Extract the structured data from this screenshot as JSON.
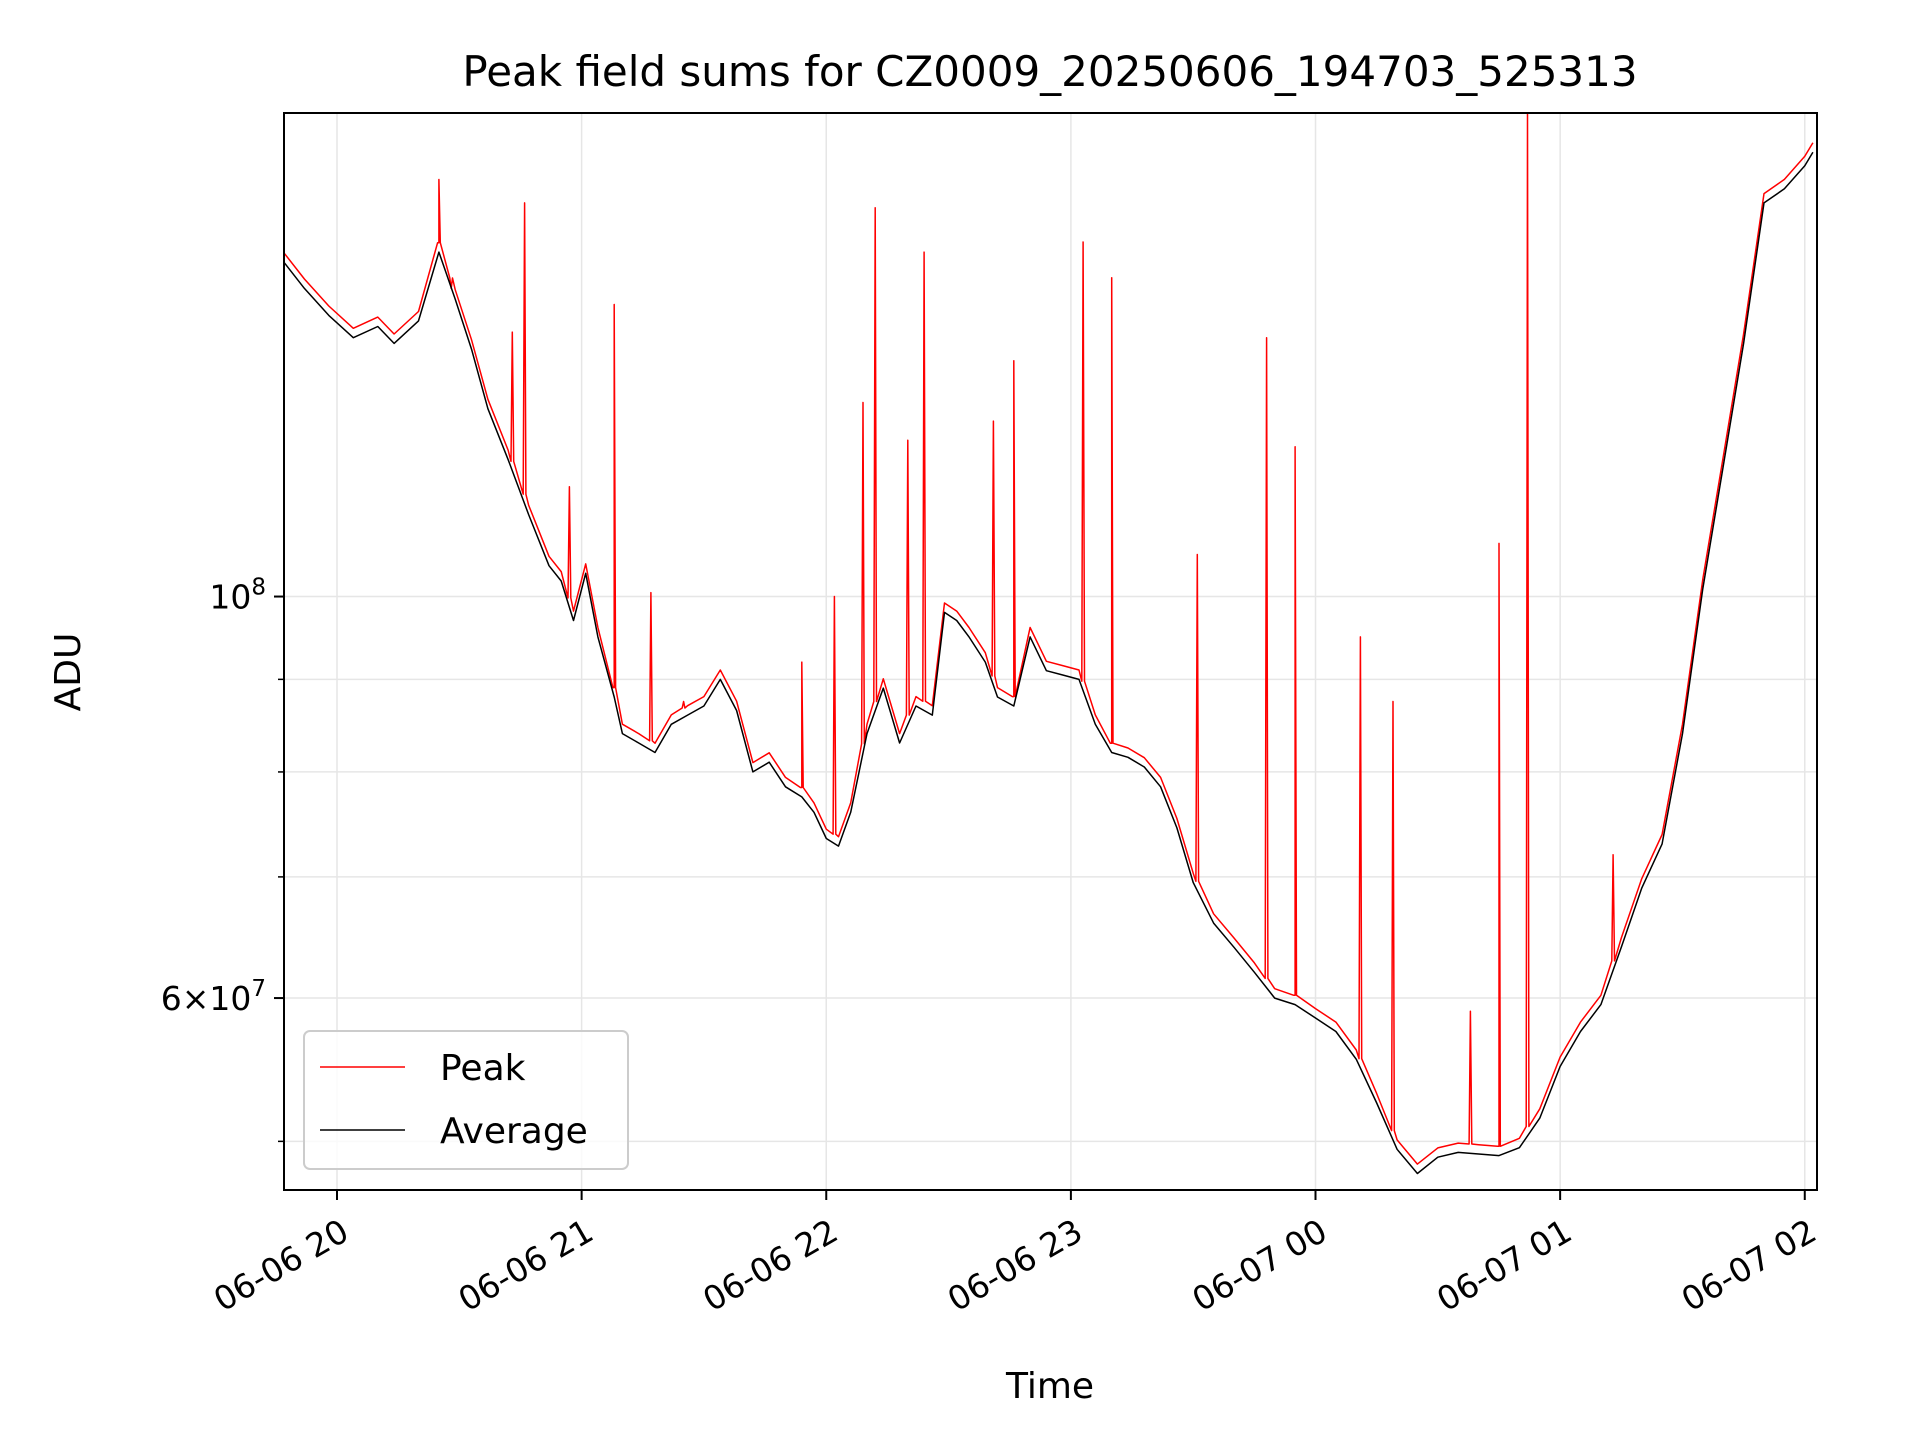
{
  "chart_data": {
    "type": "line",
    "title": "Peak field sums for CZ0009_20250606_194703_525313",
    "xlabel": "Time",
    "ylabel": "ADU",
    "y_scale": "log",
    "xlim": [
      "2025-06-06 19:47",
      "2025-06-07 02:03"
    ],
    "ylim": [
      47000000,
      185000000
    ],
    "x_ticks": [
      {
        "value": "2025-06-06 20:00",
        "label": "06-06 20"
      },
      {
        "value": "2025-06-06 21:00",
        "label": "06-06 21"
      },
      {
        "value": "2025-06-06 22:00",
        "label": "06-06 22"
      },
      {
        "value": "2025-06-06 23:00",
        "label": "06-06 23"
      },
      {
        "value": "2025-06-07 00:00",
        "label": "06-07 00"
      },
      {
        "value": "2025-06-07 01:00",
        "label": "06-07 01"
      },
      {
        "value": "2025-06-07 02:00",
        "label": "06-07 02"
      }
    ],
    "y_major_ticks": [
      {
        "value": 100000000,
        "base": "10",
        "exp": "8"
      },
      {
        "value": 60000000,
        "base": "6×10",
        "exp": "7"
      }
    ],
    "y_minor_ticks": [
      50000000,
      70000000,
      80000000,
      90000000
    ],
    "grid": true,
    "legend_position": "lower-left",
    "colors": {
      "peak": "#ff0000",
      "average": "#000000",
      "grid": "#e6e6e6",
      "legend_border": "#cccccc"
    },
    "series": [
      {
        "name": "Average",
        "color": "#000000",
        "points": [
          [
            "2025-06-06 19:47",
            153000000
          ],
          [
            "2025-06-06 19:52",
            148000000
          ],
          [
            "2025-06-06 19:58",
            143000000
          ],
          [
            "2025-06-06 20:04",
            139000000
          ],
          [
            "2025-06-06 20:10",
            141000000
          ],
          [
            "2025-06-06 20:14",
            138000000
          ],
          [
            "2025-06-06 20:20",
            142000000
          ],
          [
            "2025-06-06 20:25",
            155000000
          ],
          [
            "2025-06-06 20:29",
            146000000
          ],
          [
            "2025-06-06 20:33",
            137000000
          ],
          [
            "2025-06-06 20:37",
            127000000
          ],
          [
            "2025-06-06 20:42",
            119000000
          ],
          [
            "2025-06-06 20:47",
            111000000
          ],
          [
            "2025-06-06 20:52",
            104000000
          ],
          [
            "2025-06-06 20:55",
            102000000
          ],
          [
            "2025-06-06 20:58",
            97000000
          ],
          [
            "2025-06-06 21:01",
            103000000
          ],
          [
            "2025-06-06 21:04",
            95000000
          ],
          [
            "2025-06-06 21:08",
            88000000
          ],
          [
            "2025-06-06 21:10",
            84000000
          ],
          [
            "2025-06-06 21:14",
            83000000
          ],
          [
            "2025-06-06 21:18",
            82000000
          ],
          [
            "2025-06-06 21:22",
            85000000
          ],
          [
            "2025-06-06 21:26",
            86000000
          ],
          [
            "2025-06-06 21:30",
            87000000
          ],
          [
            "2025-06-06 21:34",
            90000000
          ],
          [
            "2025-06-06 21:38",
            86500000
          ],
          [
            "2025-06-06 21:42",
            80000000
          ],
          [
            "2025-06-06 21:46",
            81000000
          ],
          [
            "2025-06-06 21:50",
            78500000
          ],
          [
            "2025-06-06 21:54",
            77500000
          ],
          [
            "2025-06-06 21:57",
            76000000
          ],
          [
            "2025-06-06 22:00",
            73500000
          ],
          [
            "2025-06-06 22:03",
            72800000
          ],
          [
            "2025-06-06 22:06",
            76000000
          ],
          [
            "2025-06-06 22:10",
            84000000
          ],
          [
            "2025-06-06 22:14",
            89000000
          ],
          [
            "2025-06-06 22:18",
            83000000
          ],
          [
            "2025-06-06 22:22",
            87000000
          ],
          [
            "2025-06-06 22:26",
            86000000
          ],
          [
            "2025-06-06 22:29",
            98000000
          ],
          [
            "2025-06-06 22:32",
            97000000
          ],
          [
            "2025-06-06 22:35",
            95000000
          ],
          [
            "2025-06-06 22:39",
            92000000
          ],
          [
            "2025-06-06 22:42",
            88000000
          ],
          [
            "2025-06-06 22:46",
            87000000
          ],
          [
            "2025-06-06 22:50",
            95000000
          ],
          [
            "2025-06-06 22:54",
            91000000
          ],
          [
            "2025-06-06 22:58",
            90500000
          ],
          [
            "2025-06-06 23:02",
            90000000
          ],
          [
            "2025-06-06 23:06",
            85000000
          ],
          [
            "2025-06-06 23:10",
            82000000
          ],
          [
            "2025-06-06 23:14",
            81500000
          ],
          [
            "2025-06-06 23:18",
            80500000
          ],
          [
            "2025-06-06 23:22",
            78500000
          ],
          [
            "2025-06-06 23:26",
            74500000
          ],
          [
            "2025-06-06 23:30",
            69500000
          ],
          [
            "2025-06-06 23:35",
            66000000
          ],
          [
            "2025-06-06 23:40",
            64000000
          ],
          [
            "2025-06-06 23:45",
            62000000
          ],
          [
            "2025-06-06 23:50",
            60000000
          ],
          [
            "2025-06-06 23:55",
            59500000
          ],
          [
            "2025-06-07 00:00",
            58500000
          ],
          [
            "2025-06-07 00:05",
            57500000
          ],
          [
            "2025-06-07 00:10",
            55500000
          ],
          [
            "2025-06-07 00:15",
            52500000
          ],
          [
            "2025-06-07 00:20",
            49500000
          ],
          [
            "2025-06-07 00:25",
            48000000
          ],
          [
            "2025-06-07 00:30",
            49000000
          ],
          [
            "2025-06-07 00:35",
            49300000
          ],
          [
            "2025-06-07 00:40",
            49200000
          ],
          [
            "2025-06-07 00:45",
            49100000
          ],
          [
            "2025-06-07 00:50",
            49600000
          ],
          [
            "2025-06-07 00:55",
            51500000
          ],
          [
            "2025-06-07 01:00",
            55000000
          ],
          [
            "2025-06-07 01:05",
            57500000
          ],
          [
            "2025-06-07 01:10",
            59500000
          ],
          [
            "2025-06-07 01:15",
            64000000
          ],
          [
            "2025-06-07 01:20",
            69000000
          ],
          [
            "2025-06-07 01:25",
            73000000
          ],
          [
            "2025-06-07 01:30",
            84000000
          ],
          [
            "2025-06-07 01:35",
            101000000
          ],
          [
            "2025-06-07 01:40",
            118000000
          ],
          [
            "2025-06-07 01:45",
            138000000
          ],
          [
            "2025-06-07 01:50",
            165000000
          ],
          [
            "2025-06-07 01:55",
            168000000
          ],
          [
            "2025-06-07 02:00",
            173000000
          ],
          [
            "2025-06-07 02:02",
            176000000
          ]
        ]
      },
      {
        "name": "Peak",
        "color": "#ff0000",
        "offset_factor": 1.012,
        "spikes": [
          [
            "2025-06-06 20:25",
            170000000
          ],
          [
            "2025-06-06 20:28",
            148000000
          ],
          [
            "2025-06-06 20:43",
            140000000
          ],
          [
            "2025-06-06 20:46",
            165000000
          ],
          [
            "2025-06-06 20:57",
            115000000
          ],
          [
            "2025-06-06 21:08",
            145000000
          ],
          [
            "2025-06-06 21:17",
            100500000
          ],
          [
            "2025-06-06 21:25",
            87500000
          ],
          [
            "2025-06-06 21:54",
            92000000
          ],
          [
            "2025-06-06 22:02",
            100000000
          ],
          [
            "2025-06-06 22:09",
            128000000
          ],
          [
            "2025-06-06 22:12",
            164000000
          ],
          [
            "2025-06-06 22:20",
            122000000
          ],
          [
            "2025-06-06 22:24",
            155000000
          ],
          [
            "2025-06-06 22:41",
            125000000
          ],
          [
            "2025-06-06 22:46",
            135000000
          ],
          [
            "2025-06-06 23:03",
            157000000
          ],
          [
            "2025-06-06 23:10",
            150000000
          ],
          [
            "2025-06-06 23:31",
            105500000
          ],
          [
            "2025-06-06 23:48",
            139000000
          ],
          [
            "2025-06-06 23:55",
            121000000
          ],
          [
            "2025-06-07 00:11",
            95000000
          ],
          [
            "2025-06-07 00:19",
            87500000
          ],
          [
            "2025-06-07 00:38",
            59000000
          ],
          [
            "2025-06-07 00:45",
            107000000
          ],
          [
            "2025-06-07 00:52",
            185000000
          ],
          [
            "2025-06-07 01:13",
            72000000
          ]
        ]
      }
    ]
  }
}
